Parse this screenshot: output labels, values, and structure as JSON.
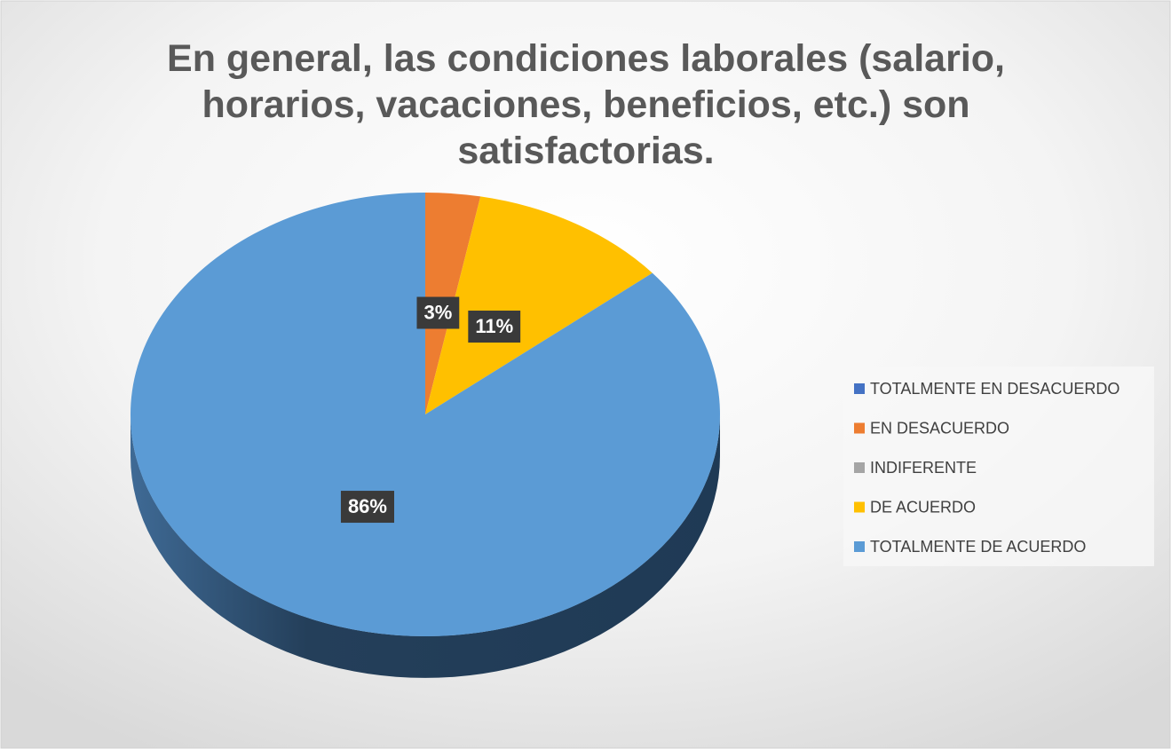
{
  "chart_data": {
    "type": "pie",
    "title": "En general, las condiciones laborales (salario, horarios, vacaciones, beneficios, etc.) son satisfactorias.",
    "categories": [
      "TOTALMENTE EN DESACUERDO",
      "EN DESACUERDO",
      "INDIFERENTE",
      "DE ACUERDO",
      "TOTALMENTE DE ACUERDO"
    ],
    "values": [
      0,
      3,
      0,
      11,
      86
    ],
    "value_labels": [
      null,
      "3%",
      null,
      "11%",
      "86%"
    ],
    "colors": [
      "#4472c4",
      "#ed7d31",
      "#a5a5a5",
      "#ffc000",
      "#5b9bd5"
    ],
    "legend": "right"
  }
}
